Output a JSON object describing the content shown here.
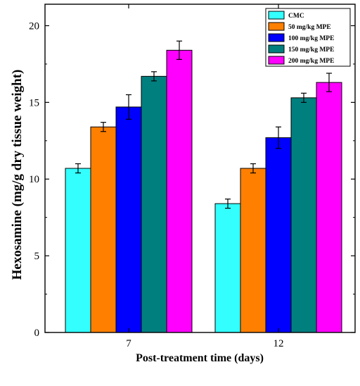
{
  "chart_data": {
    "type": "bar",
    "categories": [
      "7",
      "12"
    ],
    "series": [
      {
        "name": "CMC",
        "color": "#33ffff",
        "values": [
          10.7,
          8.4
        ],
        "errors": [
          0.3,
          0.3
        ]
      },
      {
        "name": "50 mg/kg MPE",
        "color": "#ff7f00",
        "values": [
          13.4,
          10.7
        ],
        "errors": [
          0.3,
          0.3
        ]
      },
      {
        "name": "100 mg/kg MPE",
        "color": "#0000ff",
        "values": [
          14.7,
          12.7
        ],
        "errors": [
          0.8,
          0.7
        ]
      },
      {
        "name": "150 mg/kg MPE",
        "color": "#007f7f",
        "values": [
          16.7,
          15.3
        ],
        "errors": [
          0.3,
          0.3
        ]
      },
      {
        "name": "200 mg/kg MPE",
        "color": "#ff00ff",
        "values": [
          18.4,
          16.3
        ],
        "errors": [
          0.6,
          0.6
        ]
      }
    ],
    "xlabel": "Post-treatment time (days)",
    "ylabel": "Hexosamine (mg/g dry tissue weight)",
    "yticks": [
      "0",
      "5",
      "10",
      "15",
      "20"
    ],
    "ylim": [
      0,
      21.4
    ],
    "grid": false,
    "legend_position": "top-right"
  }
}
